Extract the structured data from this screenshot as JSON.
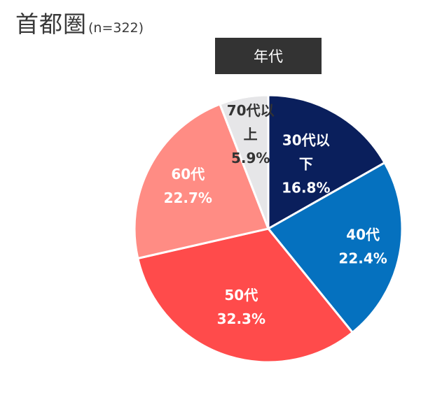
{
  "title": {
    "main": "首都圏",
    "sample": "(n=322)"
  },
  "legend_box": {
    "label": "年代"
  },
  "chart_data": {
    "type": "pie",
    "title": "首都圏",
    "subtitle": "(n=322)",
    "legend_title": "年代",
    "start": "12 o'clock, clockwise",
    "slices": [
      {
        "name": "30代以下",
        "value": 16.8,
        "value_label": "16.8%",
        "label_lines": [
          "30代以",
          "下",
          "16.8%"
        ],
        "color": "#0a1f5c",
        "text_color": "#ffffff"
      },
      {
        "name": "40代",
        "value": 22.4,
        "value_label": "22.4%",
        "label_lines": [
          "40代",
          "22.4%"
        ],
        "color": "#0571bf",
        "text_color": "#ffffff"
      },
      {
        "name": "50代",
        "value": 32.3,
        "value_label": "32.3%",
        "label_lines": [
          "50代",
          "32.3%"
        ],
        "color": "#ff4b4b",
        "text_color": "#ffffff"
      },
      {
        "name": "60代",
        "value": 22.7,
        "value_label": "22.7%",
        "label_lines": [
          "60代",
          "22.7%"
        ],
        "color": "#ff8c84",
        "text_color": "#ffffff"
      },
      {
        "name": "70代以上",
        "value": 5.9,
        "value_label": "5.9%",
        "label_lines": [
          "70代以",
          "上",
          "5.9%"
        ],
        "color": "#e6e6e8",
        "text_color": "#333333"
      }
    ]
  }
}
